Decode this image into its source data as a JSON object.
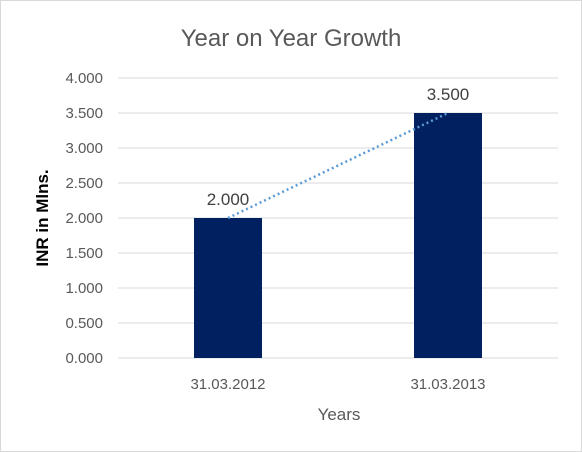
{
  "chart_data": {
    "type": "bar",
    "title": "Year on Year Growth",
    "xlabel": "Years",
    "ylabel": "INR in Mlns.",
    "categories": [
      "31.03.2012",
      "31.03.2013"
    ],
    "values": [
      2.0,
      3.5
    ],
    "data_labels": [
      "2.000",
      "3.500"
    ],
    "ylim": [
      0,
      4
    ],
    "y_ticks": [
      0,
      0.5,
      1,
      1.5,
      2,
      2.5,
      3,
      3.5,
      4
    ],
    "y_tick_labels": [
      "0.000",
      "0.500",
      "1.000",
      "1.500",
      "2.000",
      "2.500",
      "3.000",
      "3.500",
      "4.000"
    ],
    "grid": true,
    "legend": "none",
    "trendline": "linear, dotted",
    "colors": {
      "bar": "#002060",
      "trendline": "#5B9BD5",
      "grid": "#d9d9d9"
    }
  }
}
